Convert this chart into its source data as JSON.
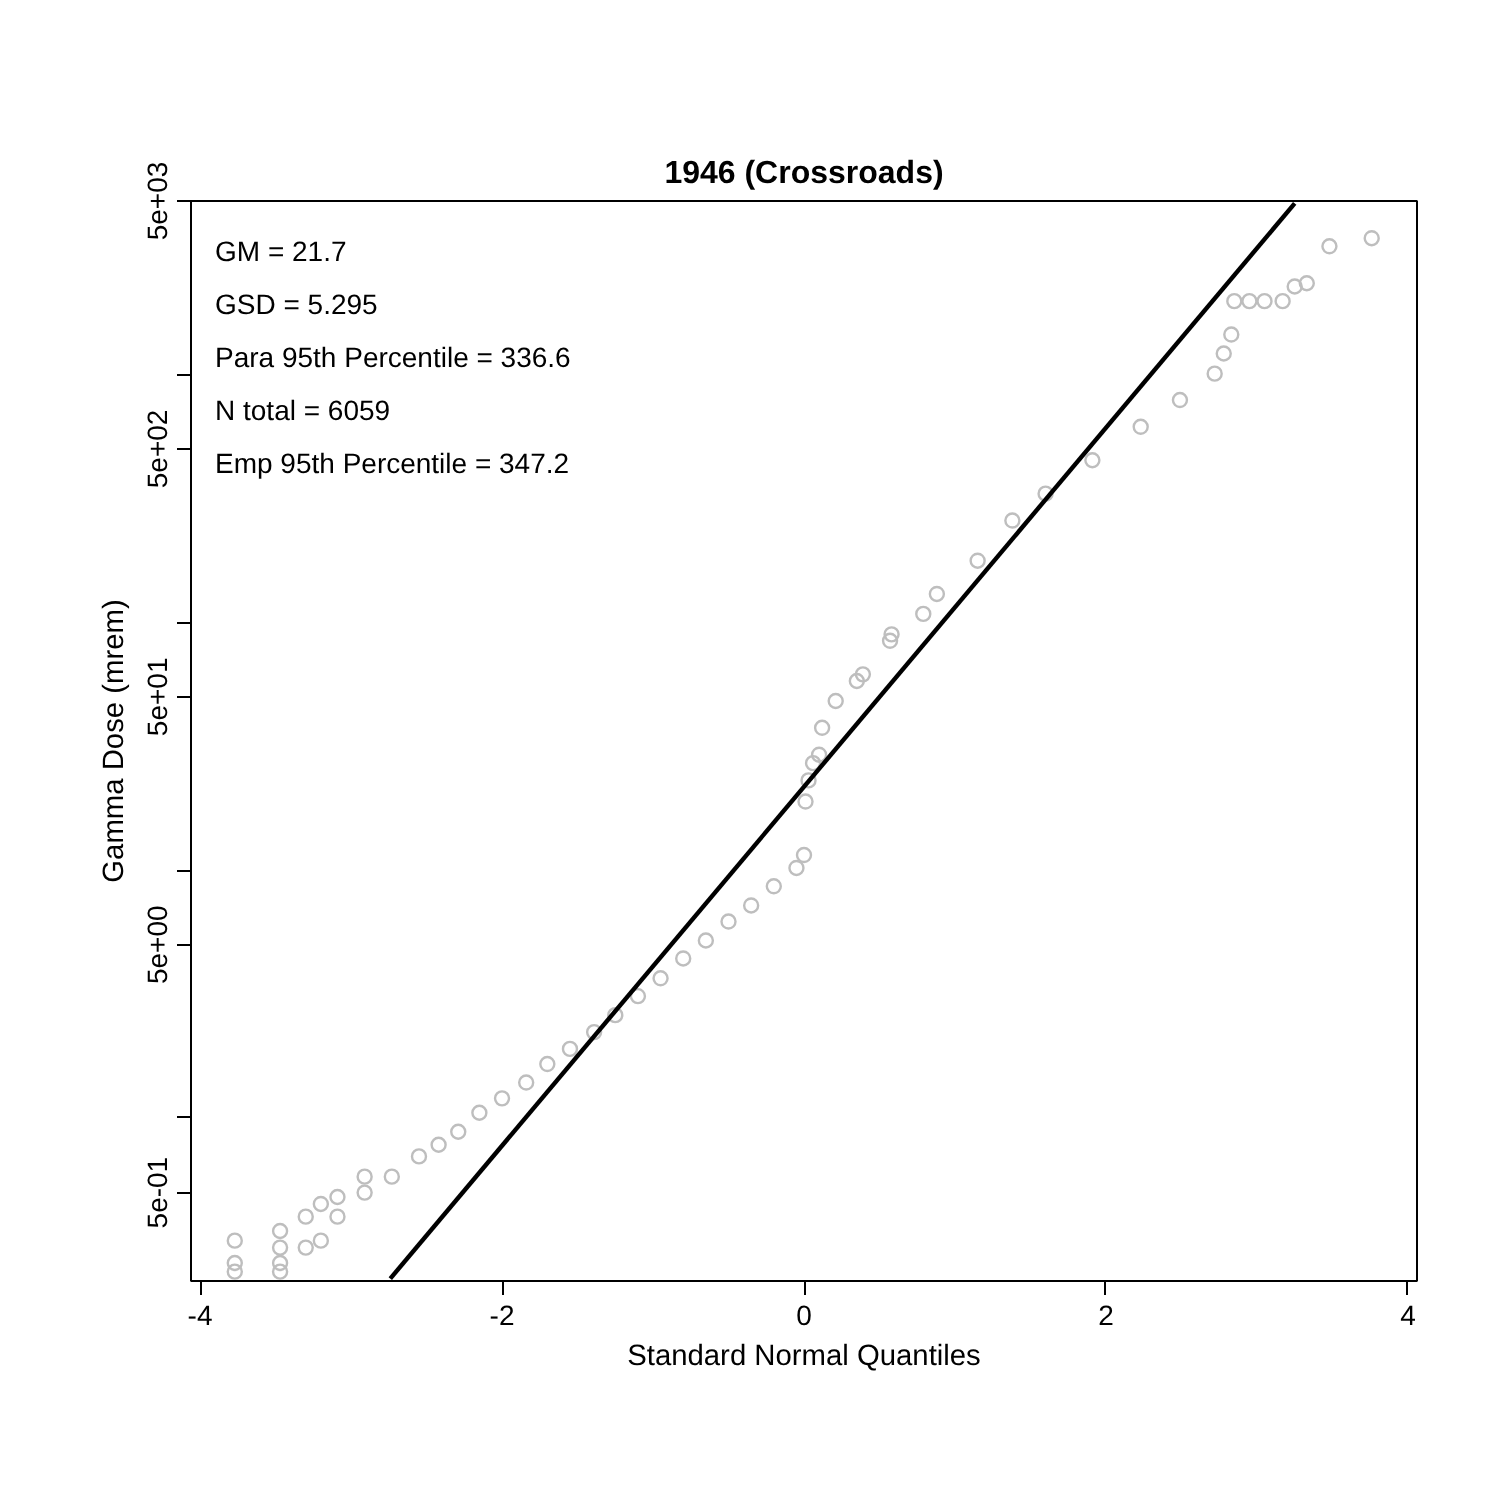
{
  "chart_data": {
    "type": "scatter",
    "title": "1946 (Crossroads)",
    "xlabel": "Standard Normal Quantiles",
    "ylabel": "Gamma Dose (mrem)",
    "annotations": [
      "GM = 21.7",
      "GSD = 5.295",
      "Para 95th Percentile =  336.6",
      "N total =  6059",
      "Emp 95th Percentile =  347.2"
    ],
    "log": "y",
    "grid": false,
    "xlim": [
      -4.06,
      4.06
    ],
    "xticks": [
      -4,
      -2,
      0,
      2,
      4
    ],
    "ylim": [
      0.22,
      5000
    ],
    "yticks": [
      {
        "value": 0.5,
        "label": "5e-01"
      },
      {
        "value": 1,
        "label": null
      },
      {
        "value": 5,
        "label": "5e+00"
      },
      {
        "value": 10,
        "label": null
      },
      {
        "value": 50,
        "label": "5e+01"
      },
      {
        "value": 100,
        "label": null
      },
      {
        "value": 500,
        "label": "5e+02"
      },
      {
        "value": 1000,
        "label": null
      },
      {
        "value": 5000,
        "label": "5e+03"
      }
    ],
    "series": [
      {
        "marker": "circle",
        "color": "#bebebe",
        "x": [
          -3.77,
          -3.77,
          -3.77,
          -3.47,
          -3.47,
          -3.47,
          -3.47,
          -3.3,
          -3.3,
          -3.2,
          -3.2,
          -3.09,
          -3.09,
          -2.91,
          -2.91,
          -2.73,
          -2.55,
          -2.42,
          -2.29,
          -2.15,
          -2.0,
          -1.84,
          -1.7,
          -1.55,
          -1.39,
          -1.25,
          -1.1,
          -0.95,
          -0.8,
          -0.65,
          -0.5,
          -0.35,
          -0.2,
          -0.05,
          0.0,
          0.01,
          0.03,
          0.06,
          0.1,
          0.12,
          0.21,
          0.35,
          0.39,
          0.57,
          0.58,
          0.79,
          0.88,
          1.15,
          1.38,
          1.6,
          1.91,
          2.23,
          2.49,
          2.72,
          2.78,
          2.83,
          2.85,
          2.95,
          3.05,
          3.17,
          3.25,
          3.33,
          3.48,
          3.76
        ],
        "values": [
          0.24,
          0.26,
          0.32,
          0.24,
          0.26,
          0.3,
          0.35,
          0.3,
          0.4,
          0.32,
          0.45,
          0.4,
          0.48,
          0.5,
          0.58,
          0.58,
          0.7,
          0.78,
          0.88,
          1.05,
          1.2,
          1.39,
          1.65,
          1.9,
          2.22,
          2.6,
          3.1,
          3.66,
          4.4,
          5.2,
          6.2,
          7.2,
          8.6,
          10.2,
          11.5,
          18.9,
          23,
          27,
          29.2,
          37.5,
          48.1,
          57.9,
          61.6,
          84.1,
          89.3,
          108,
          130,
          177,
          257,
          330,
          450,
          614,
          787,
          1006,
          1213,
          1446,
          1972,
          1972,
          1972,
          1972,
          2260,
          2329,
          3282,
          3540
        ]
      },
      {
        "type": "line",
        "color": "#000000",
        "x": [
          -2.74,
          3.25
        ],
        "values": [
          0.225,
          4890
        ]
      }
    ]
  }
}
